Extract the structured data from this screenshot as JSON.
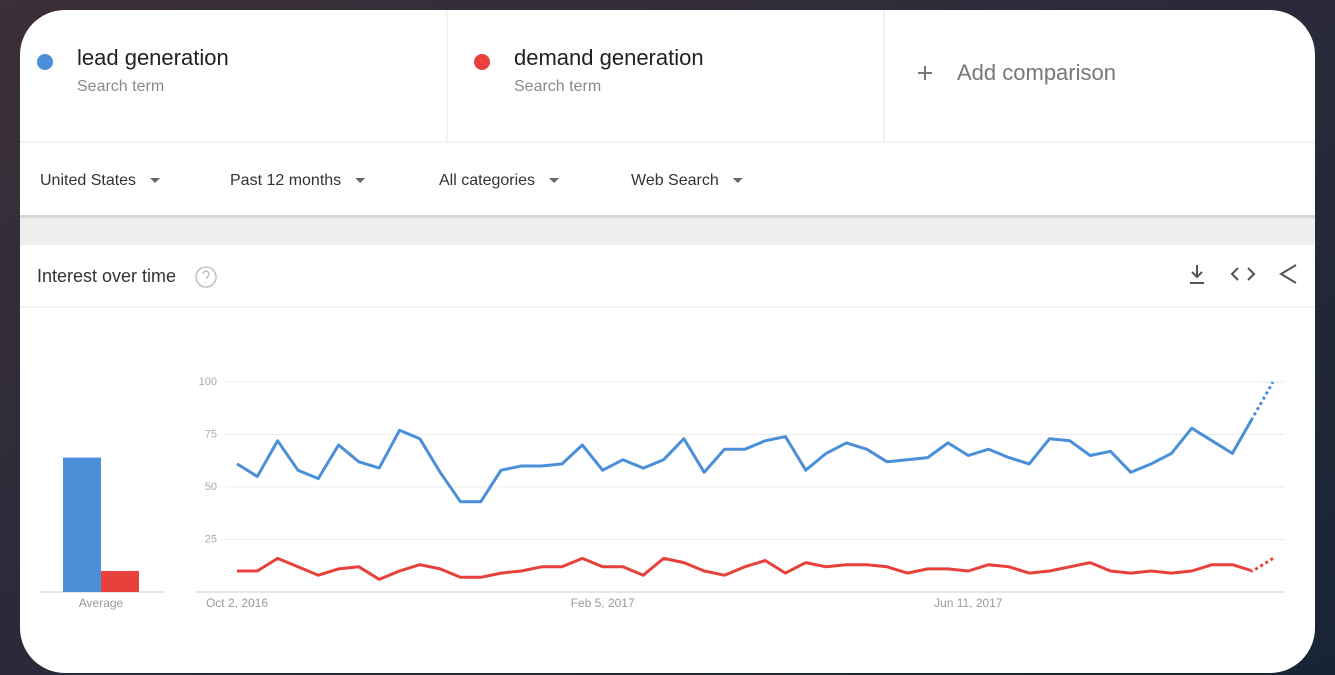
{
  "terms": [
    {
      "name": "lead generation",
      "subtitle": "Search term"
    },
    {
      "name": "demand generation",
      "subtitle": "Search term"
    }
  ],
  "add_comparison": "Add comparison",
  "filters": [
    "United States",
    "Past 12 months",
    "All categories",
    "Web Search"
  ],
  "panel_title": "Interest over time",
  "chart_data": {
    "type": "line",
    "categories": [
      "Oct 2, 2016",
      null,
      null,
      null,
      null,
      null,
      null,
      null,
      null,
      null,
      null,
      null,
      null,
      null,
      null,
      null,
      null,
      null,
      "Feb 5, 2017",
      null,
      null,
      null,
      null,
      null,
      null,
      null,
      null,
      null,
      null,
      null,
      null,
      null,
      null,
      null,
      null,
      null,
      "Jun 11, 2017",
      null,
      null,
      null,
      null,
      null,
      null,
      null,
      null,
      null,
      null,
      null,
      null,
      null,
      null,
      null
    ],
    "series": [
      {
        "name": "lead generation",
        "color": "#4a8fd8",
        "values": [
          61,
          55,
          72,
          58,
          54,
          70,
          62,
          59,
          77,
          73,
          57,
          43,
          43,
          58,
          60,
          60,
          61,
          70,
          58,
          63,
          59,
          63,
          73,
          57,
          68,
          68,
          72,
          74,
          58,
          66,
          71,
          68,
          62,
          63,
          64,
          71,
          65,
          68,
          64,
          61,
          73,
          72,
          65,
          67,
          57,
          61,
          66,
          78,
          72,
          66,
          83,
          100
        ],
        "average": 64
      },
      {
        "name": "demand generation",
        "color": "#e8403a",
        "values": [
          10,
          10,
          16,
          12,
          8,
          11,
          12,
          6,
          10,
          13,
          11,
          7,
          7,
          9,
          10,
          12,
          12,
          16,
          12,
          12,
          8,
          16,
          14,
          10,
          8,
          12,
          15,
          9,
          14,
          12,
          13,
          13,
          12,
          9,
          11,
          11,
          10,
          13,
          12,
          9,
          10,
          12,
          14,
          10,
          9,
          10,
          9,
          10,
          13,
          13,
          10,
          16
        ],
        "average": 10
      }
    ],
    "average_label": "Average",
    "ylim": [
      0,
      100
    ],
    "yticks": [
      25,
      50,
      75,
      100
    ],
    "grid": true
  }
}
